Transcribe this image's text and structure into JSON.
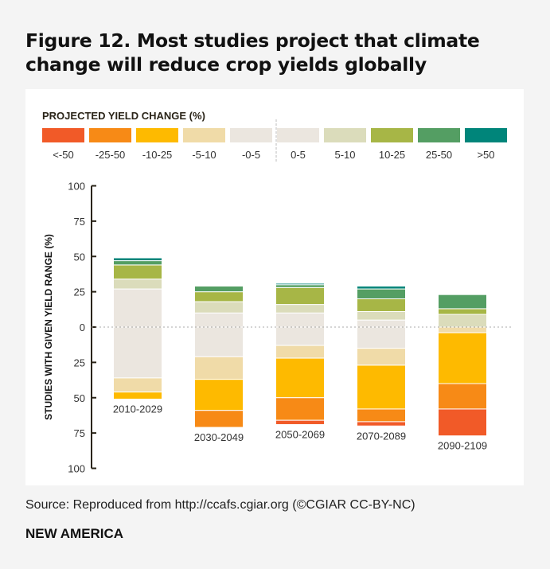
{
  "title": "Figure 12. Most studies project that climate change will reduce crop yields globally",
  "source": "Source: Reproduced from http://ccafs.cgiar.org (©CGIAR CC-BY-NC)",
  "brand": "NEW AMERICA",
  "chart_data": {
    "type": "bar",
    "stacked": "diverging",
    "legend_title": "PROJECTED YIELD CHANGE (%)",
    "legend_placement": "top",
    "ylabel": "STUDIES WITH GIVEN YIELD RANGE (%)",
    "ylim": [
      -100,
      100
    ],
    "yticks": [
      100,
      75,
      50,
      25,
      0,
      25,
      50,
      75,
      100
    ],
    "categories": [
      "2010-2029",
      "2030-2049",
      "2050-2069",
      "2070-2089",
      "2090-2109"
    ],
    "negative_series": [
      {
        "name": "-0-5",
        "color": "#ebe6df",
        "values": [
          36,
          21,
          13,
          15,
          0
        ]
      },
      {
        "name": "-5-10",
        "color": "#f0dba8",
        "values": [
          10,
          16,
          9,
          12,
          4
        ]
      },
      {
        "name": "-10-25",
        "color": "#feba00",
        "values": [
          5,
          22,
          28,
          31,
          36
        ]
      },
      {
        "name": "-25-50",
        "color": "#f78a16",
        "values": [
          0,
          12,
          16,
          9,
          18
        ]
      },
      {
        "name": "<-50",
        "color": "#f15a28",
        "values": [
          0,
          0,
          3,
          3,
          19
        ]
      }
    ],
    "positive_series": [
      {
        "name": "0-5",
        "color": "#ebe6df",
        "values": [
          27,
          10,
          10,
          5,
          0
        ]
      },
      {
        "name": "5-10",
        "color": "#dbdcbb",
        "values": [
          7,
          8,
          6,
          6,
          9
        ]
      },
      {
        "name": "10-25",
        "color": "#a7b646",
        "values": [
          10,
          7,
          12,
          9,
          4
        ]
      },
      {
        "name": "25-50",
        "color": "#549e63",
        "values": [
          3,
          4,
          2,
          7,
          10
        ]
      },
      {
        "name": ">50",
        "color": "#00857a",
        "values": [
          2,
          0,
          1,
          2,
          0
        ]
      }
    ],
    "legend_order": [
      "<-50",
      "-25-50",
      "-10-25",
      "-5-10",
      "-0-5",
      "0-5",
      "5-10",
      "10-25",
      "25-50",
      ">50"
    ],
    "grid": false
  }
}
